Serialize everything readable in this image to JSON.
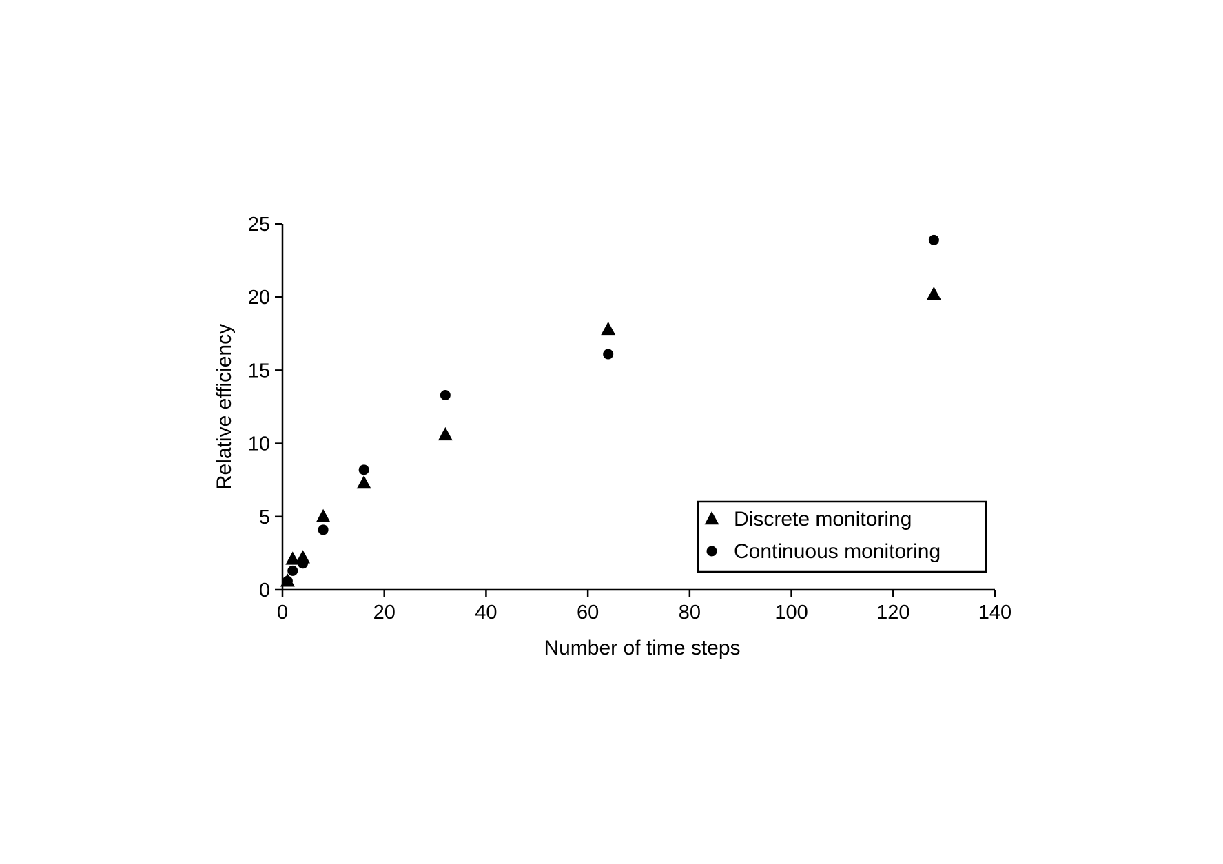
{
  "chart_data": {
    "type": "scatter",
    "title": "",
    "xlabel": "Number of time steps",
    "ylabel": "Relative efficiency",
    "xlim": [
      0,
      140
    ],
    "ylim": [
      0,
      25
    ],
    "xticks": [
      0,
      20,
      40,
      60,
      80,
      100,
      120,
      140
    ],
    "yticks": [
      0,
      5,
      10,
      15,
      20,
      25
    ],
    "grid": false,
    "legend_position": "bottom-right",
    "series": [
      {
        "name": "Discrete monitoring",
        "marker": "triangle",
        "color": "#000000",
        "x": [
          1,
          2,
          4,
          8,
          16,
          32,
          64,
          128
        ],
        "y": [
          0.6,
          2.1,
          2.2,
          5.0,
          7.3,
          10.6,
          17.8,
          20.2
        ]
      },
      {
        "name": "Continuous monitoring",
        "marker": "circle",
        "color": "#000000",
        "x": [
          1,
          2,
          4,
          8,
          16,
          32,
          64,
          128
        ],
        "y": [
          0.6,
          1.3,
          1.8,
          4.1,
          8.2,
          13.3,
          16.1,
          23.9
        ]
      }
    ]
  }
}
